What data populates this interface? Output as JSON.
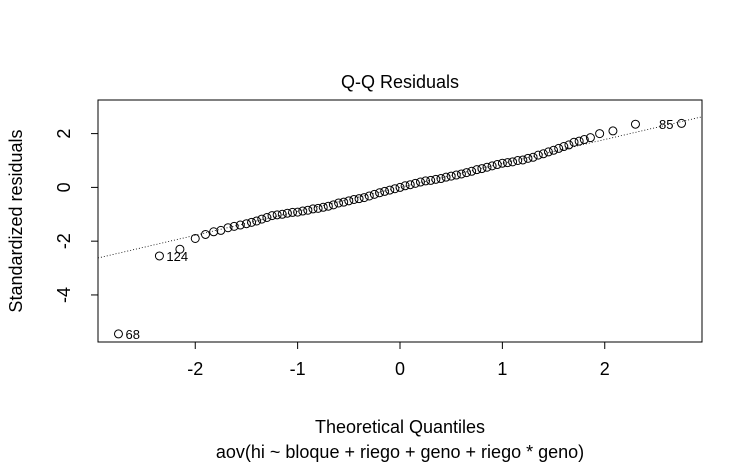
{
  "chart_data": {
    "type": "scatter",
    "title": "Q-Q Residuals",
    "xlabel": "Theoretical Quantiles",
    "ylabel": "Standardized residuals",
    "subtitle": "aov(hi ~ bloque + riego + geno + riego * geno)",
    "xlim": [
      -2.95,
      2.95
    ],
    "ylim": [
      -5.75,
      3.25
    ],
    "xticks": [
      -2,
      -1,
      0,
      1,
      2
    ],
    "xtick_labels": [
      "-2",
      "-1",
      "0",
      "1",
      "2"
    ],
    "yticks": [
      -4,
      -2,
      0,
      2
    ],
    "ytick_labels": [
      "-4",
      "-2",
      "0",
      "2"
    ],
    "grid": false,
    "legend": "none",
    "reference_line": {
      "slope": 0.89,
      "intercept": 0.0,
      "style": "dotted"
    },
    "marker": "open-circle",
    "point_labels": [
      {
        "label": "68",
        "x": -2.75,
        "y": -5.45
      },
      {
        "label": "124",
        "x": -2.35,
        "y": -2.55
      },
      {
        "label": "85",
        "x": 2.75,
        "y": 2.35
      }
    ],
    "points": [
      [
        -2.75,
        -5.45
      ],
      [
        -2.35,
        -2.55
      ],
      [
        -2.15,
        -2.3
      ],
      [
        -2.0,
        -1.9
      ],
      [
        -1.9,
        -1.75
      ],
      [
        -1.82,
        -1.65
      ],
      [
        -1.75,
        -1.6
      ],
      [
        -1.68,
        -1.5
      ],
      [
        -1.62,
        -1.45
      ],
      [
        -1.56,
        -1.4
      ],
      [
        -1.5,
        -1.35
      ],
      [
        -1.45,
        -1.3
      ],
      [
        -1.4,
        -1.25
      ],
      [
        -1.35,
        -1.18
      ],
      [
        -1.3,
        -1.12
      ],
      [
        -1.25,
        -1.05
      ],
      [
        -1.2,
        -1.02
      ],
      [
        -1.15,
        -1.0
      ],
      [
        -1.1,
        -0.96
      ],
      [
        -1.05,
        -0.93
      ],
      [
        -1.0,
        -0.92
      ],
      [
        -0.95,
        -0.88
      ],
      [
        -0.9,
        -0.85
      ],
      [
        -0.85,
        -0.8
      ],
      [
        -0.8,
        -0.78
      ],
      [
        -0.75,
        -0.74
      ],
      [
        -0.7,
        -0.7
      ],
      [
        -0.65,
        -0.65
      ],
      [
        -0.6,
        -0.58
      ],
      [
        -0.55,
        -0.55
      ],
      [
        -0.5,
        -0.5
      ],
      [
        -0.45,
        -0.45
      ],
      [
        -0.4,
        -0.42
      ],
      [
        -0.35,
        -0.38
      ],
      [
        -0.3,
        -0.32
      ],
      [
        -0.25,
        -0.26
      ],
      [
        -0.2,
        -0.2
      ],
      [
        -0.15,
        -0.15
      ],
      [
        -0.1,
        -0.1
      ],
      [
        -0.05,
        -0.05
      ],
      [
        0.0,
        0.0
      ],
      [
        0.05,
        0.06
      ],
      [
        0.1,
        0.1
      ],
      [
        0.15,
        0.15
      ],
      [
        0.2,
        0.2
      ],
      [
        0.25,
        0.24
      ],
      [
        0.3,
        0.26
      ],
      [
        0.35,
        0.3
      ],
      [
        0.4,
        0.33
      ],
      [
        0.45,
        0.38
      ],
      [
        0.5,
        0.42
      ],
      [
        0.55,
        0.46
      ],
      [
        0.6,
        0.5
      ],
      [
        0.65,
        0.55
      ],
      [
        0.7,
        0.6
      ],
      [
        0.75,
        0.66
      ],
      [
        0.8,
        0.7
      ],
      [
        0.85,
        0.75
      ],
      [
        0.9,
        0.8
      ],
      [
        0.95,
        0.85
      ],
      [
        1.0,
        0.9
      ],
      [
        1.05,
        0.92
      ],
      [
        1.1,
        0.95
      ],
      [
        1.15,
        1.0
      ],
      [
        1.2,
        1.02
      ],
      [
        1.25,
        1.08
      ],
      [
        1.3,
        1.12
      ],
      [
        1.35,
        1.2
      ],
      [
        1.4,
        1.25
      ],
      [
        1.45,
        1.32
      ],
      [
        1.5,
        1.38
      ],
      [
        1.55,
        1.45
      ],
      [
        1.6,
        1.52
      ],
      [
        1.65,
        1.58
      ],
      [
        1.7,
        1.68
      ],
      [
        1.75,
        1.72
      ],
      [
        1.8,
        1.78
      ],
      [
        1.86,
        1.85
      ],
      [
        1.95,
        2.0
      ],
      [
        2.08,
        2.1
      ],
      [
        2.3,
        2.35
      ],
      [
        2.75,
        2.38
      ]
    ]
  }
}
